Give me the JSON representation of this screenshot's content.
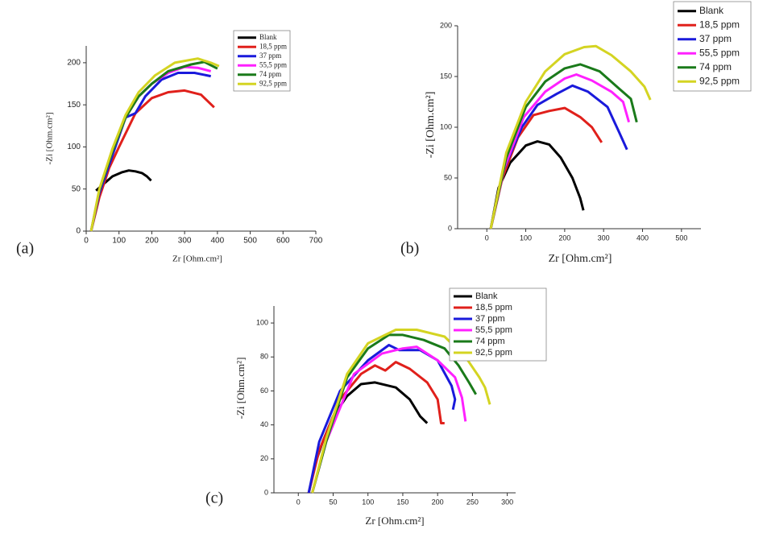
{
  "chart_data": [
    {
      "type": "line",
      "label": "(a)",
      "xlabel": "Zr [Ohm.cm²]",
      "ylabel": "-Zi [Ohm.cm²]",
      "xlim": [
        0,
        700
      ],
      "ylim": [
        0,
        220
      ],
      "xticks": [
        0,
        100,
        200,
        300,
        400,
        500,
        600,
        700
      ],
      "yticks": [
        0,
        50,
        100,
        150,
        200
      ],
      "legend": "upper right",
      "series": [
        {
          "name": "Blank",
          "color": "#000000",
          "x": [
            30,
            50,
            80,
            110,
            130,
            150,
            170,
            185,
            198
          ],
          "values": [
            48,
            55,
            65,
            70,
            72,
            71,
            69,
            65,
            60
          ]
        },
        {
          "name": "18,5 ppm",
          "color": "#e0201b",
          "x": [
            15,
            40,
            70,
            100,
            150,
            200,
            250,
            300,
            350,
            390
          ],
          "values": [
            0,
            40,
            75,
            100,
            140,
            158,
            165,
            167,
            162,
            147
          ]
        },
        {
          "name": "37 ppm",
          "color": "#1a1adb",
          "x": [
            15,
            40,
            80,
            120,
            150,
            180,
            230,
            280,
            330,
            380
          ],
          "values": [
            0,
            45,
            90,
            135,
            140,
            160,
            180,
            188,
            188,
            184
          ]
        },
        {
          "name": "55,5 ppm",
          "color": "#ff20ff",
          "x": [
            15,
            40,
            80,
            120,
            160,
            200,
            250,
            300,
            340,
            380
          ],
          "values": [
            0,
            48,
            95,
            135,
            160,
            175,
            188,
            195,
            194,
            190
          ]
        },
        {
          "name": "74 ppm",
          "color": "#1a7a1a",
          "x": [
            15,
            40,
            80,
            120,
            160,
            200,
            250,
            320,
            360,
            400
          ],
          "values": [
            0,
            48,
            95,
            135,
            160,
            175,
            190,
            198,
            201,
            193
          ]
        },
        {
          "name": "92,5 ppm",
          "color": "#d4d422",
          "x": [
            15,
            40,
            80,
            120,
            160,
            210,
            270,
            340,
            380,
            405
          ],
          "values": [
            0,
            50,
            98,
            138,
            165,
            185,
            200,
            205,
            200,
            196
          ]
        }
      ]
    },
    {
      "type": "line",
      "label": "(b)",
      "xlabel": "Zr [Ohm.cm²]",
      "ylabel": "-Zi [Ohm.cm²]",
      "xlim": [
        -75,
        550
      ],
      "ylim": [
        0,
        200
      ],
      "xticks": [
        0,
        100,
        200,
        300,
        400,
        500
      ],
      "yticks": [
        0,
        50,
        100,
        150,
        200
      ],
      "legend": "upper right",
      "series": [
        {
          "name": "Blank",
          "color": "#000000",
          "x": [
            10,
            30,
            60,
            100,
            130,
            160,
            190,
            220,
            240,
            248
          ],
          "values": [
            0,
            40,
            65,
            82,
            86,
            83,
            70,
            50,
            30,
            18
          ]
        },
        {
          "name": "18,5 ppm",
          "color": "#e0201b",
          "x": [
            10,
            40,
            80,
            120,
            160,
            200,
            240,
            270,
            295
          ],
          "values": [
            0,
            50,
            90,
            112,
            116,
            119,
            110,
            100,
            85
          ]
        },
        {
          "name": "37 ppm",
          "color": "#1a1adb",
          "x": [
            10,
            40,
            90,
            130,
            180,
            220,
            260,
            310,
            340,
            360
          ],
          "values": [
            0,
            55,
            100,
            122,
            133,
            141,
            135,
            120,
            95,
            78
          ]
        },
        {
          "name": "55,5 ppm",
          "color": "#ff20ff",
          "x": [
            10,
            45,
            95,
            150,
            200,
            230,
            270,
            320,
            350,
            365
          ],
          "values": [
            0,
            60,
            110,
            135,
            148,
            152,
            146,
            135,
            125,
            105
          ]
        },
        {
          "name": "74 ppm",
          "color": "#1a7a1a",
          "x": [
            10,
            50,
            100,
            150,
            200,
            240,
            290,
            340,
            370,
            385
          ],
          "values": [
            0,
            70,
            120,
            145,
            158,
            162,
            155,
            138,
            128,
            105
          ]
        },
        {
          "name": "92,5 ppm",
          "color": "#d4d422",
          "x": [
            10,
            50,
            100,
            150,
            200,
            250,
            280,
            320,
            370,
            405,
            420
          ],
          "values": [
            0,
            75,
            125,
            155,
            172,
            179,
            180,
            171,
            155,
            140,
            127
          ]
        }
      ]
    },
    {
      "type": "line",
      "label": "(c)",
      "xlabel": "Zr [Ohm.cm²]",
      "ylabel": "-Zi [Ohm.cm²]",
      "xlim": [
        -35,
        312
      ],
      "ylim": [
        0,
        110
      ],
      "xticks": [
        0,
        50,
        100,
        150,
        200,
        250,
        300
      ],
      "yticks": [
        0,
        20,
        40,
        60,
        80,
        100
      ],
      "legend": "upper right",
      "series": [
        {
          "name": "Blank",
          "color": "#000000",
          "x": [
            15,
            25,
            35,
            50,
            70,
            90,
            110,
            140,
            160,
            175,
            185
          ],
          "values": [
            0,
            18,
            30,
            45,
            57,
            64,
            65,
            62,
            55,
            45,
            41
          ]
        },
        {
          "name": "18,5 ppm",
          "color": "#e0201b",
          "x": [
            15,
            30,
            60,
            90,
            110,
            125,
            140,
            160,
            185,
            200,
            205,
            210
          ],
          "values": [
            0,
            25,
            55,
            70,
            75,
            72,
            77,
            73,
            65,
            55,
            41,
            41
          ]
        },
        {
          "name": "37 ppm",
          "color": "#1a1adb",
          "x": [
            15,
            30,
            60,
            100,
            130,
            145,
            175,
            200,
            220,
            225,
            222
          ],
          "values": [
            0,
            30,
            60,
            78,
            87,
            84,
            84,
            78,
            63,
            55,
            49
          ]
        },
        {
          "name": "55,5 ppm",
          "color": "#ff20ff",
          "x": [
            20,
            40,
            80,
            120,
            150,
            170,
            200,
            225,
            235,
            240
          ],
          "values": [
            0,
            30,
            70,
            82,
            85,
            86,
            78,
            68,
            56,
            42
          ]
        },
        {
          "name": "74 ppm",
          "color": "#1a7a1a",
          "x": [
            20,
            40,
            70,
            100,
            130,
            150,
            180,
            210,
            230,
            245,
            255
          ],
          "values": [
            0,
            30,
            68,
            85,
            93,
            93,
            90,
            85,
            75,
            65,
            58
          ]
        },
        {
          "name": "92,5 ppm",
          "color": "#d4d422",
          "x": [
            20,
            40,
            70,
            100,
            140,
            170,
            210,
            240,
            260,
            268,
            275
          ],
          "values": [
            0,
            32,
            70,
            88,
            96,
            96,
            92,
            80,
            68,
            62,
            52
          ]
        }
      ]
    }
  ]
}
